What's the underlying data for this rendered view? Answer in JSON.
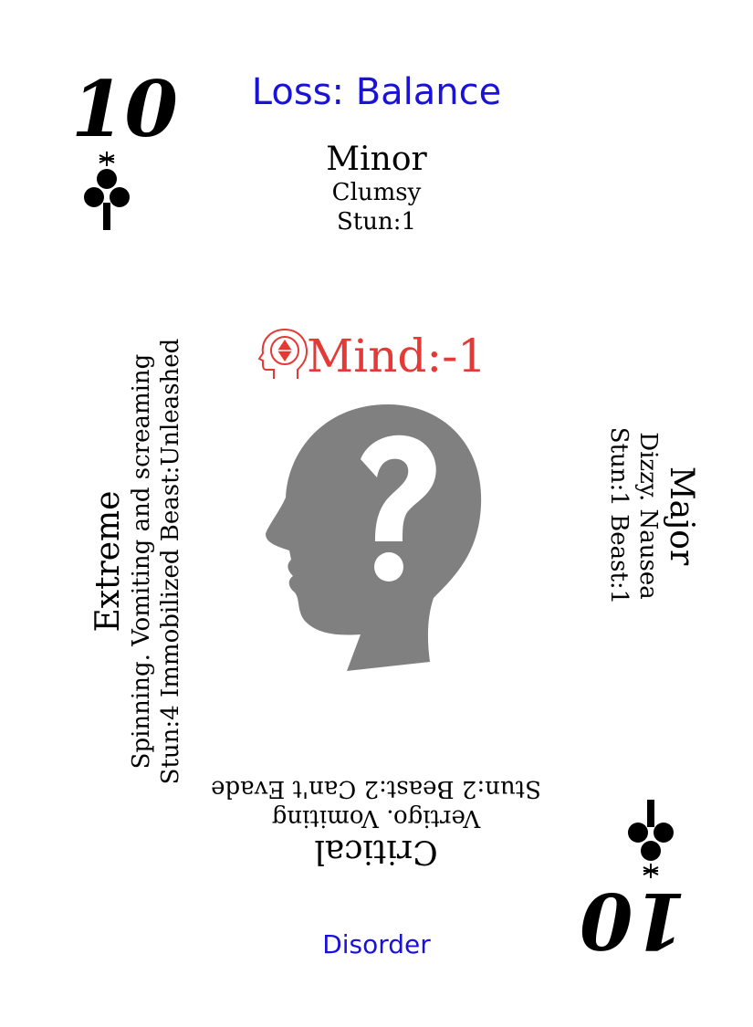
{
  "card": {
    "rank": "10",
    "suit_icon": "club-icon",
    "title": "Loss: Balance",
    "footer": "Disorder",
    "colors": {
      "title": "#1a12d8",
      "mind": "#e53935",
      "art": "#808080"
    }
  },
  "minor": {
    "heading": "Minor",
    "lines": [
      "Clumsy",
      "Stun:1"
    ]
  },
  "major": {
    "heading": "Major",
    "lines": [
      "Dizzy. Nausea",
      "Stun:1 Beast:1"
    ]
  },
  "critical": {
    "heading": "Critical",
    "lines": [
      "Vertigo. Vomiting",
      "Stun:2 Beast:2 Can't Evade"
    ]
  },
  "extreme": {
    "heading": "Extreme",
    "lines": [
      "Spinning. Vomiting and screaming",
      "Stun:4 Immobilized Beast:Unleashed"
    ]
  },
  "stat": {
    "icon": "mind-icon",
    "label": "Mind:-1"
  },
  "art": {
    "icon": "head-question-icon"
  }
}
